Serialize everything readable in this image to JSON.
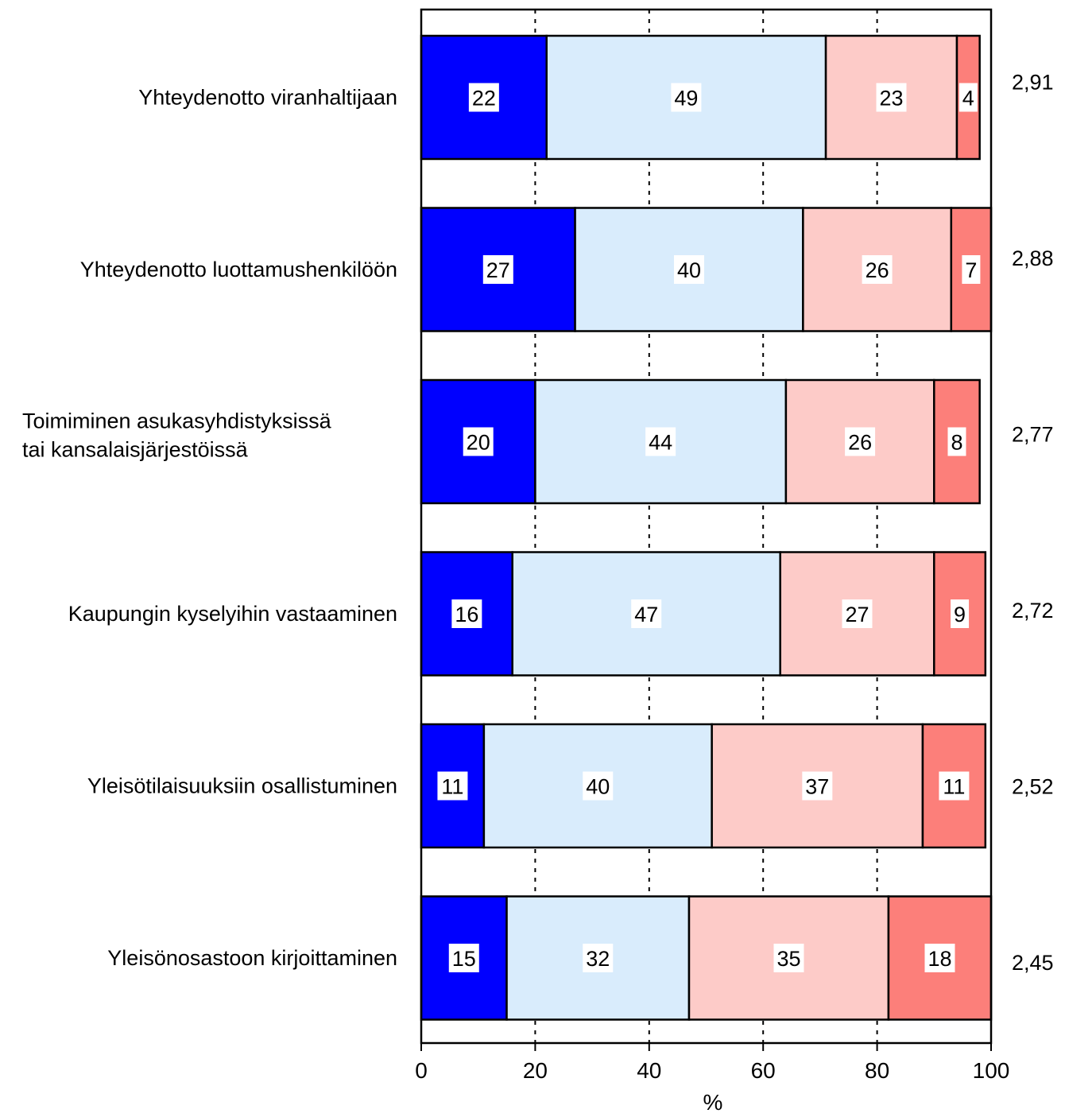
{
  "chart_data": {
    "type": "bar",
    "orientation": "horizontal",
    "stacked": true,
    "categories": [
      [
        "Yhteydenotto viranhaltijaan"
      ],
      [
        "Yhteydenotto luottamushenkilöön"
      ],
      [
        "Toimiminen asukasyhdistyksissä",
        "tai kansalaisjärjestöissä"
      ],
      [
        "Kaupungin kyselyihin vastaaminen"
      ],
      [
        "Yleisötilaisuuksiin osallistuminen"
      ],
      [
        "Yleisönosastoon kirjoittaminen"
      ]
    ],
    "series": [
      {
        "color": "#0000ff",
        "values": [
          22,
          27,
          20,
          16,
          11,
          15
        ]
      },
      {
        "color": "#d9ecfc",
        "values": [
          49,
          40,
          44,
          47,
          40,
          32
        ]
      },
      {
        "color": "#fdcbc8",
        "values": [
          23,
          26,
          26,
          27,
          37,
          35
        ]
      },
      {
        "color": "#fc7f7a",
        "values": [
          4,
          7,
          8,
          9,
          11,
          18
        ]
      }
    ],
    "scores": [
      "2,91",
      "2,88",
      "2,77",
      "2,72",
      "2,52",
      "2,45"
    ],
    "xlabel": "%",
    "xlim": [
      0,
      100
    ],
    "xticks": [
      0,
      20,
      40,
      60,
      80,
      100
    ],
    "grid": "vertical dotted"
  }
}
